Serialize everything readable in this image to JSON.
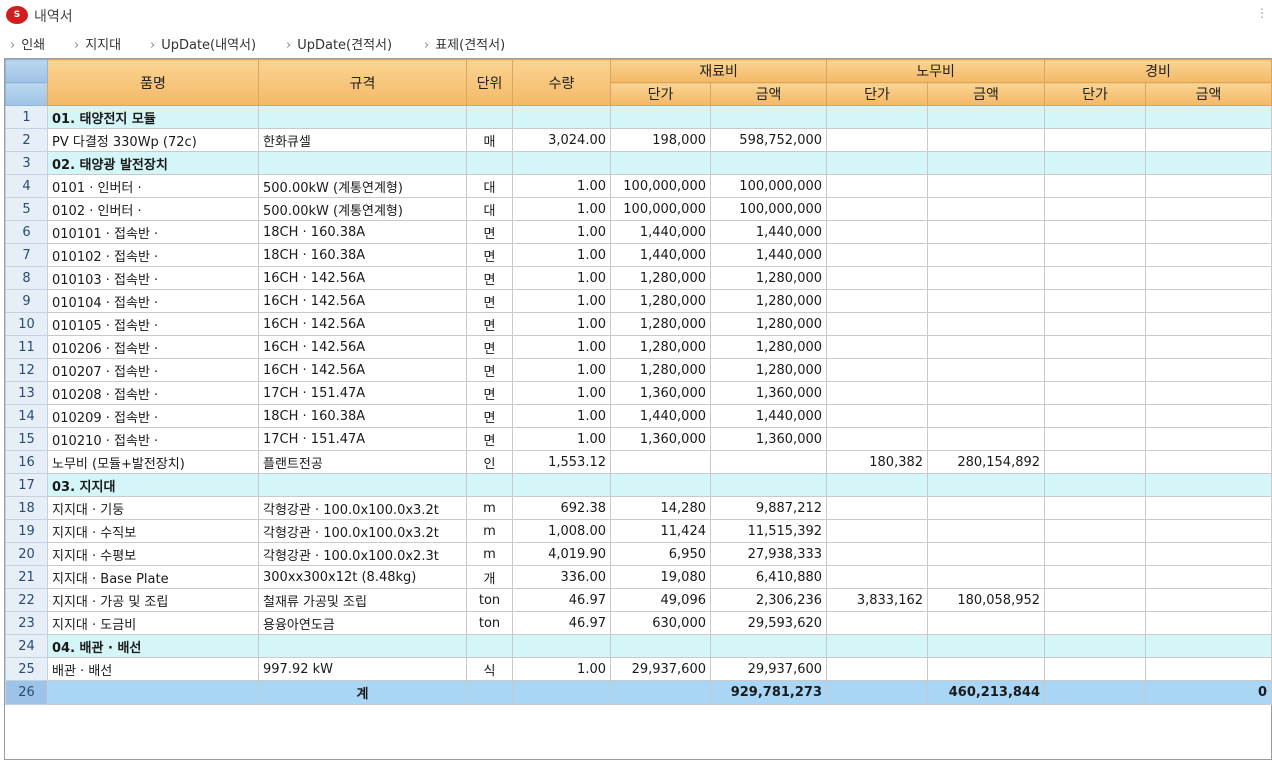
{
  "window": {
    "title": "내역서",
    "logo_text": "S"
  },
  "toolbar": {
    "items": [
      {
        "label": "인쇄"
      },
      {
        "label": "지지대"
      },
      {
        "label": "UpDate(내역서)"
      },
      {
        "label": "UpDate(견적서)"
      },
      {
        "label": "표제(견적서)"
      }
    ]
  },
  "grid": {
    "headers": {
      "name": "품명",
      "spec": "규격",
      "unit": "단위",
      "qty": "수량",
      "material": "재료비",
      "labor": "노무비",
      "expense": "경비",
      "unit_price": "단가",
      "amount": "금액"
    },
    "rows": [
      {
        "no": "1",
        "type": "section",
        "name": "01. 태양전지 모듈"
      },
      {
        "no": "2",
        "name": "PV 다결정 330Wp (72c)",
        "spec": "한화큐셀",
        "unit": "매",
        "qty": "3,024.00",
        "mat_price": "198,000",
        "mat_amount": "598,752,000"
      },
      {
        "no": "3",
        "type": "section",
        "name": "02. 태양광 발전장치"
      },
      {
        "no": "4",
        "name": "0101 · 인버터 ·",
        "spec": "500.00kW (계통연계형)",
        "unit": "대",
        "qty": "1.00",
        "mat_price": "100,000,000",
        "mat_amount": "100,000,000"
      },
      {
        "no": "5",
        "name": "0102 · 인버터 ·",
        "spec": "500.00kW (계통연계형)",
        "unit": "대",
        "qty": "1.00",
        "mat_price": "100,000,000",
        "mat_amount": "100,000,000"
      },
      {
        "no": "6",
        "name": "010101 · 접속반 ·",
        "spec": "18CH · 160.38A",
        "unit": "면",
        "qty": "1.00",
        "mat_price": "1,440,000",
        "mat_amount": "1,440,000"
      },
      {
        "no": "7",
        "name": "010102 · 접속반 ·",
        "spec": "18CH · 160.38A",
        "unit": "면",
        "qty": "1.00",
        "mat_price": "1,440,000",
        "mat_amount": "1,440,000"
      },
      {
        "no": "8",
        "name": "010103 · 접속반 ·",
        "spec": "16CH · 142.56A",
        "unit": "면",
        "qty": "1.00",
        "mat_price": "1,280,000",
        "mat_amount": "1,280,000"
      },
      {
        "no": "9",
        "name": "010104 · 접속반 ·",
        "spec": "16CH · 142.56A",
        "unit": "면",
        "qty": "1.00",
        "mat_price": "1,280,000",
        "mat_amount": "1,280,000"
      },
      {
        "no": "10",
        "name": "010105 · 접속반 ·",
        "spec": "16CH · 142.56A",
        "unit": "면",
        "qty": "1.00",
        "mat_price": "1,280,000",
        "mat_amount": "1,280,000"
      },
      {
        "no": "11",
        "name": "010206 · 접속반 ·",
        "spec": "16CH · 142.56A",
        "unit": "면",
        "qty": "1.00",
        "mat_price": "1,280,000",
        "mat_amount": "1,280,000"
      },
      {
        "no": "12",
        "name": "010207 · 접속반 ·",
        "spec": "16CH · 142.56A",
        "unit": "면",
        "qty": "1.00",
        "mat_price": "1,280,000",
        "mat_amount": "1,280,000"
      },
      {
        "no": "13",
        "name": "010208 · 접속반 ·",
        "spec": "17CH · 151.47A",
        "unit": "면",
        "qty": "1.00",
        "mat_price": "1,360,000",
        "mat_amount": "1,360,000"
      },
      {
        "no": "14",
        "name": "010209 · 접속반 ·",
        "spec": "18CH · 160.38A",
        "unit": "면",
        "qty": "1.00",
        "mat_price": "1,440,000",
        "mat_amount": "1,440,000"
      },
      {
        "no": "15",
        "name": "010210 · 접속반 ·",
        "spec": "17CH · 151.47A",
        "unit": "면",
        "qty": "1.00",
        "mat_price": "1,360,000",
        "mat_amount": "1,360,000"
      },
      {
        "no": "16",
        "name": "노무비 (모듈+발전장치)",
        "spec": "플랜트전공",
        "unit": "인",
        "qty": "1,553.12",
        "lab_price": "180,382",
        "lab_amount": "280,154,892"
      },
      {
        "no": "17",
        "type": "section",
        "name": "03. 지지대"
      },
      {
        "no": "18",
        "name": "지지대 · 기둥",
        "spec": "각형강관 · 100.0x100.0x3.2t",
        "unit": "m",
        "qty": "692.38",
        "mat_price": "14,280",
        "mat_amount": "9,887,212"
      },
      {
        "no": "19",
        "name": "지지대 · 수직보",
        "spec": "각형강관 · 100.0x100.0x3.2t",
        "unit": "m",
        "qty": "1,008.00",
        "mat_price": "11,424",
        "mat_amount": "11,515,392"
      },
      {
        "no": "20",
        "name": "지지대 · 수평보",
        "spec": "각형강관 · 100.0x100.0x2.3t",
        "unit": "m",
        "qty": "4,019.90",
        "mat_price": "6,950",
        "mat_amount": "27,938,333"
      },
      {
        "no": "21",
        "name": "지지대 · Base Plate",
        "spec": "300xx300x12t (8.48kg)",
        "unit": "개",
        "qty": "336.00",
        "mat_price": "19,080",
        "mat_amount": "6,410,880"
      },
      {
        "no": "22",
        "name": "지지대 · 가공 및 조립",
        "spec": "철재류 가공및 조립",
        "unit": "ton",
        "qty": "46.97",
        "mat_price": "49,096",
        "mat_amount": "2,306,236",
        "lab_price": "3,833,162",
        "lab_amount": "180,058,952"
      },
      {
        "no": "23",
        "name": "지지대 · 도금비",
        "spec": "용융아연도금",
        "unit": "ton",
        "qty": "46.97",
        "mat_price": "630,000",
        "mat_amount": "29,593,620"
      },
      {
        "no": "24",
        "type": "section",
        "name": "04. 배관 · 배선"
      },
      {
        "no": "25",
        "name": "배관 · 배선",
        "spec": "997.92 kW",
        "unit": "식",
        "qty": "1.00",
        "mat_price": "29,937,600",
        "mat_amount": "29,937,600"
      }
    ],
    "total": {
      "no": "26",
      "label": "계",
      "mat_amount": "929,781,273",
      "lab_amount": "460,213,844",
      "exp_amount": "0"
    }
  }
}
